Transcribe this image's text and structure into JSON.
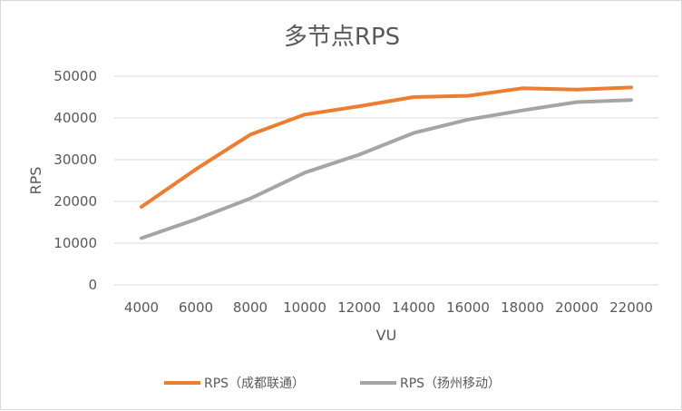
{
  "chart_data": {
    "type": "line",
    "title": "多节点RPS",
    "xlabel": "VU",
    "ylabel": "RPS",
    "x": [
      4000,
      6000,
      8000,
      10000,
      12000,
      14000,
      16000,
      18000,
      20000,
      22000
    ],
    "ylim": [
      0,
      50000
    ],
    "yticks": [
      0,
      10000,
      20000,
      30000,
      40000,
      50000
    ],
    "grid": true,
    "legend_position": "bottom",
    "series": [
      {
        "name": "RPS（成都联通）",
        "color": "#ed7d31",
        "values": [
          18700,
          27700,
          36000,
          40800,
          42800,
          45000,
          45300,
          47100,
          46800,
          47300
        ]
      },
      {
        "name": "RPS（扬州移动）",
        "color": "#a5a5a5",
        "values": [
          11200,
          15700,
          20700,
          26900,
          31200,
          36400,
          39600,
          41800,
          43800,
          44300
        ]
      }
    ]
  }
}
